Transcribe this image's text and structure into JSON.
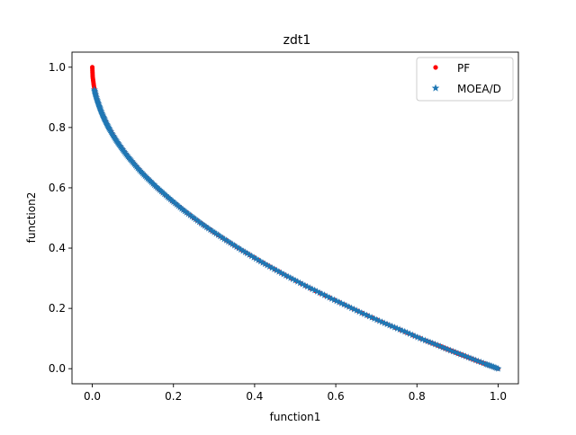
{
  "chart_data": {
    "type": "scatter",
    "title": "zdt1",
    "xlabel": "function1",
    "ylabel": "function2",
    "xlim": [
      -0.05,
      1.05
    ],
    "ylim": [
      -0.05,
      1.05
    ],
    "xticks": [
      0.0,
      0.2,
      0.4,
      0.6,
      0.8,
      1.0
    ],
    "xtick_labels": [
      "0.0",
      "0.2",
      "0.4",
      "0.6",
      "0.8",
      "1.0"
    ],
    "yticks": [
      0.0,
      0.2,
      0.4,
      0.6,
      0.8,
      1.0
    ],
    "ytick_labels": [
      "0.0",
      "0.2",
      "0.4",
      "0.6",
      "0.8",
      "1.0"
    ],
    "grid": false,
    "legend_position": "top-right",
    "series": [
      {
        "name": "PF",
        "marker": "circle",
        "color": "#ff0000",
        "x": [
          0.0,
          0.001,
          0.004,
          0.01,
          0.02,
          0.04,
          0.06,
          0.09,
          0.12,
          0.16,
          0.2,
          0.25,
          0.3,
          0.36,
          0.42,
          0.48,
          0.55,
          0.62,
          0.69,
          0.76,
          0.82,
          0.85,
          0.86,
          0.87,
          0.88,
          0.89,
          0.9,
          0.91,
          0.92,
          0.94,
          0.96,
          0.97,
          0.98,
          1.0
        ],
        "y": [
          1.0,
          0.968,
          0.937,
          0.9,
          0.859,
          0.8,
          0.755,
          0.7,
          0.654,
          0.6,
          0.553,
          0.5,
          0.452,
          0.4,
          0.352,
          0.307,
          0.258,
          0.213,
          0.169,
          0.128,
          0.094,
          0.078,
          0.073,
          0.067,
          0.062,
          0.057,
          0.051,
          0.046,
          0.041,
          0.03,
          0.02,
          0.015,
          0.01,
          0.0
        ]
      },
      {
        "name": "MOEA/D",
        "marker": "star",
        "color": "#1f77b4",
        "x": [
          0.005,
          0.008,
          0.012,
          0.016,
          0.02,
          0.025,
          0.03,
          0.036,
          0.042,
          0.05,
          0.058,
          0.066,
          0.075,
          0.085,
          0.095,
          0.106,
          0.118,
          0.13,
          0.143,
          0.156,
          0.17,
          0.185,
          0.2,
          0.216,
          0.232,
          0.25,
          0.268,
          0.286,
          0.305,
          0.325,
          0.345,
          0.366,
          0.387,
          0.409,
          0.431,
          0.454,
          0.477,
          0.5,
          0.524,
          0.548,
          0.572,
          0.596,
          0.62,
          0.645,
          0.67,
          0.695,
          0.72,
          0.745,
          0.77,
          0.795,
          0.82,
          0.845,
          0.87,
          0.895,
          0.92,
          0.945,
          0.97,
          0.985,
          1.0
        ],
        "y": [
          0.925,
          0.908,
          0.89,
          0.874,
          0.859,
          0.842,
          0.827,
          0.81,
          0.795,
          0.776,
          0.759,
          0.743,
          0.726,
          0.708,
          0.692,
          0.674,
          0.656,
          0.639,
          0.622,
          0.605,
          0.588,
          0.57,
          0.553,
          0.535,
          0.518,
          0.5,
          0.482,
          0.465,
          0.448,
          0.43,
          0.413,
          0.395,
          0.378,
          0.36,
          0.343,
          0.326,
          0.309,
          0.293,
          0.276,
          0.26,
          0.244,
          0.228,
          0.213,
          0.197,
          0.181,
          0.166,
          0.151,
          0.137,
          0.123,
          0.108,
          0.094,
          0.081,
          0.067,
          0.054,
          0.041,
          0.028,
          0.015,
          0.008,
          0.0
        ]
      }
    ]
  }
}
